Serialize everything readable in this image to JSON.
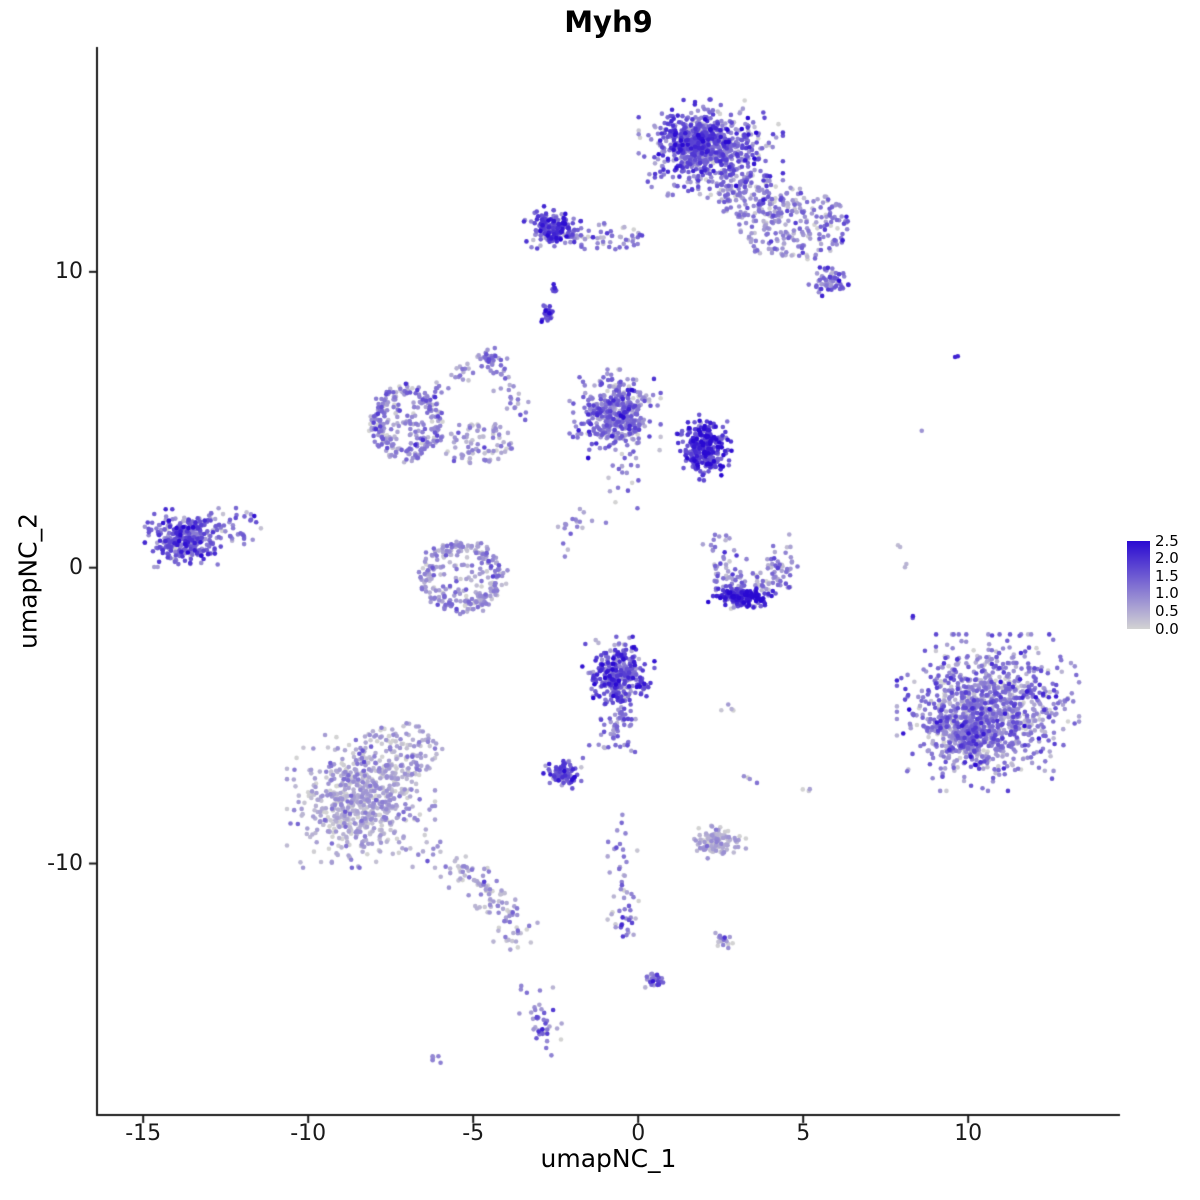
{
  "chart_data": {
    "type": "scatter",
    "title": "Myh9",
    "xlabel": "umapNC_1",
    "ylabel": "umapNC_2",
    "xlim": [
      -16.4,
      14.6
    ],
    "ylim": [
      -18.5,
      17.6
    ],
    "xticks": [
      -15,
      -10,
      -5,
      0,
      5,
      10
    ],
    "yticks": [
      -10,
      0,
      10
    ],
    "grid": false,
    "legend_position": "right",
    "point_color_low": "#d3d3d3",
    "point_color_high": "#2a0ad2",
    "colorbar": {
      "ticks": [
        "2.5",
        "2.0",
        "1.5",
        "1.0",
        "0.5",
        "0.0"
      ],
      "min": 0,
      "max": 2.5
    },
    "clusters": [
      {
        "name": "top-main",
        "shape": "blob",
        "cx": 2.2,
        "cy": 14.1,
        "rx": 1.9,
        "ry": 1.5,
        "n": 620,
        "expr_mean": 1.15,
        "expr_sd": 0.6
      },
      {
        "name": "top-main-core",
        "shape": "blob",
        "cx": 1.7,
        "cy": 14.5,
        "rx": 0.95,
        "ry": 0.85,
        "n": 220,
        "expr_mean": 1.6,
        "expr_sd": 0.5
      },
      {
        "name": "top-right-arm",
        "shape": "spread",
        "cx": 4.7,
        "cy": 11.6,
        "rx": 1.7,
        "ry": 1.25,
        "n": 230,
        "expr_mean": 0.85,
        "expr_sd": 0.5
      },
      {
        "name": "top-right-tip",
        "shape": "blob",
        "cx": 5.8,
        "cy": 9.7,
        "rx": 0.55,
        "ry": 0.45,
        "n": 60,
        "expr_mean": 1.25,
        "expr_sd": 0.5
      },
      {
        "name": "top-bridge",
        "shape": "spread",
        "cx": 3.4,
        "cy": 12.5,
        "rx": 1.0,
        "ry": 0.8,
        "n": 90,
        "expr_mean": 0.9,
        "expr_sd": 0.5
      },
      {
        "name": "upper-left-blob",
        "shape": "blob",
        "cx": -2.6,
        "cy": 11.5,
        "rx": 0.75,
        "ry": 0.62,
        "n": 180,
        "expr_mean": 1.55,
        "expr_sd": 0.55
      },
      {
        "name": "upper-left-scatter",
        "shape": "spread",
        "cx": -1.0,
        "cy": 11.15,
        "rx": 1.15,
        "ry": 0.5,
        "n": 60,
        "expr_mean": 0.85,
        "expr_sd": 0.5
      },
      {
        "name": "stub-upper",
        "shape": "blob",
        "cx": -2.55,
        "cy": 9.4,
        "rx": 0.12,
        "ry": 0.2,
        "n": 8,
        "expr_mean": 1.5,
        "expr_sd": 0.4
      },
      {
        "name": "stub",
        "shape": "blob",
        "cx": -2.75,
        "cy": 8.6,
        "rx": 0.18,
        "ry": 0.34,
        "n": 24,
        "expr_mean": 1.7,
        "expr_sd": 0.45
      },
      {
        "name": "arc-blob",
        "shape": "blob",
        "cx": -4.5,
        "cy": 7.1,
        "rx": 0.3,
        "ry": 0.28,
        "n": 30,
        "expr_mean": 1.0,
        "expr_sd": 0.5
      },
      {
        "name": "arc-trail",
        "shape": "trail",
        "path": [
          [
            -6.4,
            5.9
          ],
          [
            -5.3,
            6.5
          ],
          [
            -4.4,
            6.9
          ],
          [
            -3.8,
            6.0
          ],
          [
            -3.6,
            5.0
          ]
        ],
        "jitter": 0.22,
        "n": 60,
        "expr_mean": 0.8,
        "expr_sd": 0.45
      },
      {
        "name": "left-ring",
        "shape": "ring",
        "cx": -7.0,
        "cy": 4.9,
        "rx": 1.05,
        "ry": 1.25,
        "n": 270,
        "expr_mean": 0.8,
        "expr_sd": 0.5
      },
      {
        "name": "ring-bridge",
        "shape": "spread",
        "cx": -4.9,
        "cy": 4.2,
        "rx": 1.15,
        "ry": 0.75,
        "n": 85,
        "expr_mean": 0.7,
        "expr_sd": 0.45
      },
      {
        "name": "center-cluster",
        "shape": "blob",
        "cx": -0.7,
        "cy": 5.2,
        "rx": 1.2,
        "ry": 1.3,
        "n": 430,
        "expr_mean": 1.0,
        "expr_sd": 0.55
      },
      {
        "name": "center-dark",
        "shape": "blob",
        "cx": 2.0,
        "cy": 4.1,
        "rx": 0.72,
        "ry": 1.0,
        "n": 270,
        "expr_mean": 1.8,
        "expr_sd": 0.5
      },
      {
        "name": "center-drip",
        "shape": "trail",
        "path": [
          [
            -0.2,
            3.4
          ],
          [
            -1.2,
            1.8
          ],
          [
            -2.6,
            0.9
          ]
        ],
        "jitter": 0.3,
        "n": 35,
        "expr_mean": 0.8,
        "expr_sd": 0.5
      },
      {
        "name": "left-crescent",
        "shape": "ring",
        "cx": -5.3,
        "cy": -0.3,
        "rx": 1.25,
        "ry": 1.15,
        "n": 285,
        "expr_mean": 0.7,
        "expr_sd": 0.45
      },
      {
        "name": "far-left",
        "shape": "blob",
        "cx": -13.8,
        "cy": 1.0,
        "rx": 1.0,
        "ry": 0.85,
        "n": 330,
        "expr_mean": 1.3,
        "expr_sd": 0.6
      },
      {
        "name": "far-left-tail",
        "shape": "spread",
        "cx": -12.3,
        "cy": 1.4,
        "rx": 0.9,
        "ry": 0.8,
        "n": 40,
        "expr_mean": 1.0,
        "expr_sd": 0.5
      },
      {
        "name": "right-crescent",
        "shape": "trail",
        "path": [
          [
            2.4,
            0.9
          ],
          [
            2.55,
            -0.2
          ],
          [
            3.3,
            -1.0
          ],
          [
            4.2,
            -0.5
          ],
          [
            4.45,
            0.6
          ]
        ],
        "jitter": 0.28,
        "n": 160,
        "expr_mean": 0.9,
        "expr_sd": 0.5
      },
      {
        "name": "right-crescent-dark",
        "shape": "blob",
        "cx": 3.1,
        "cy": -1.0,
        "rx": 0.85,
        "ry": 0.35,
        "n": 130,
        "expr_mean": 2.1,
        "expr_sd": 0.35
      },
      {
        "name": "bottom-center",
        "shape": "blob",
        "cx": -0.6,
        "cy": -3.6,
        "rx": 0.95,
        "ry": 1.1,
        "n": 310,
        "expr_mean": 1.45,
        "expr_sd": 0.6
      },
      {
        "name": "bottom-center-trail",
        "shape": "trail",
        "path": [
          [
            -0.5,
            -4.8
          ],
          [
            -0.8,
            -6.3
          ]
        ],
        "jitter": 0.3,
        "n": 55,
        "expr_mean": 1.1,
        "expr_sd": 0.5
      },
      {
        "name": "small-dark",
        "shape": "blob",
        "cx": -2.3,
        "cy": -7.0,
        "rx": 0.5,
        "ry": 0.4,
        "n": 95,
        "expr_mean": 1.5,
        "expr_sd": 0.55
      },
      {
        "name": "bottom-left-main",
        "shape": "blob",
        "cx": -8.4,
        "cy": -7.9,
        "rx": 1.95,
        "ry": 1.95,
        "n": 640,
        "expr_mean": 0.45,
        "expr_sd": 0.38
      },
      {
        "name": "bottom-left-upper",
        "shape": "spread",
        "cx": -7.2,
        "cy": -6.2,
        "rx": 1.3,
        "ry": 0.95,
        "n": 120,
        "expr_mean": 0.5,
        "expr_sd": 0.38
      },
      {
        "name": "bottom-left-tail",
        "shape": "trail",
        "path": [
          [
            -6.4,
            -9.2
          ],
          [
            -5.2,
            -10.3
          ],
          [
            -4.4,
            -10.9
          ],
          [
            -4.0,
            -11.7
          ],
          [
            -3.8,
            -12.9
          ]
        ],
        "jitter": 0.3,
        "n": 115,
        "expr_mean": 0.5,
        "expr_sd": 0.4
      },
      {
        "name": "small-lavender",
        "shape": "blob",
        "cx": 2.4,
        "cy": -9.3,
        "rx": 0.75,
        "ry": 0.5,
        "n": 115,
        "expr_mean": 0.45,
        "expr_sd": 0.35
      },
      {
        "name": "right-main",
        "shape": "blob",
        "cx": 10.6,
        "cy": -4.9,
        "rx": 2.4,
        "ry": 2.3,
        "n": 1050,
        "expr_mean": 0.9,
        "expr_sd": 0.55
      },
      {
        "name": "right-main-core",
        "shape": "blob",
        "cx": 10.0,
        "cy": -5.6,
        "rx": 1.2,
        "ry": 1.1,
        "n": 260,
        "expr_mean": 1.05,
        "expr_sd": 0.5
      },
      {
        "name": "center-vtrail",
        "shape": "trail",
        "path": [
          [
            -0.6,
            -8.9
          ],
          [
            -0.5,
            -10.3
          ],
          [
            -0.4,
            -11.6
          ],
          [
            -0.5,
            -12.4
          ]
        ],
        "jitter": 0.2,
        "n": 55,
        "expr_mean": 0.9,
        "expr_sd": 0.5
      },
      {
        "name": "bottom-blob-a",
        "shape": "blob",
        "cx": 0.5,
        "cy": -13.9,
        "rx": 0.3,
        "ry": 0.25,
        "n": 24,
        "expr_mean": 1.2,
        "expr_sd": 0.5
      },
      {
        "name": "bottom-blob-b",
        "shape": "blob",
        "cx": 2.6,
        "cy": -12.6,
        "rx": 0.3,
        "ry": 0.3,
        "n": 18,
        "expr_mean": 0.8,
        "expr_sd": 0.5
      },
      {
        "name": "bottom-trail",
        "shape": "trail",
        "path": [
          [
            -3.4,
            -14.3
          ],
          [
            -2.9,
            -15.3
          ],
          [
            -2.5,
            -16.2
          ]
        ],
        "jitter": 0.25,
        "n": 42,
        "expr_mean": 0.8,
        "expr_sd": 0.5
      },
      {
        "name": "bottom-dots",
        "shape": "blob",
        "cx": -6.2,
        "cy": -16.6,
        "rx": 0.28,
        "ry": 0.15,
        "n": 6,
        "expr_mean": 0.6,
        "expr_sd": 0.4
      },
      {
        "name": "dot-ne",
        "shape": "blob",
        "cx": 9.6,
        "cy": 7.1,
        "rx": 0.12,
        "ry": 0.1,
        "n": 2,
        "expr_mean": 1.9,
        "expr_sd": 0.3
      },
      {
        "name": "dot-e1",
        "shape": "blob",
        "cx": 8.5,
        "cy": 4.6,
        "rx": 0.1,
        "ry": 0.1,
        "n": 1,
        "expr_mean": 0.9,
        "expr_sd": 0.2
      },
      {
        "name": "dot-e2",
        "shape": "blob",
        "cx": 7.9,
        "cy": 0.8,
        "rx": 0.12,
        "ry": 0.12,
        "n": 2,
        "expr_mean": 0.3,
        "expr_sd": 0.2
      },
      {
        "name": "dot-e3",
        "shape": "blob",
        "cx": 8.1,
        "cy": 0.1,
        "rx": 0.12,
        "ry": 0.12,
        "n": 2,
        "expr_mean": 0.3,
        "expr_sd": 0.2
      },
      {
        "name": "dot-e4",
        "shape": "blob",
        "cx": 8.3,
        "cy": -1.6,
        "rx": 0.12,
        "ry": 0.12,
        "n": 2,
        "expr_mean": 1.2,
        "expr_sd": 0.4
      },
      {
        "name": "dot-s1",
        "shape": "blob",
        "cx": 5.1,
        "cy": -7.5,
        "rx": 0.18,
        "ry": 0.12,
        "n": 3,
        "expr_mean": 0.3,
        "expr_sd": 0.2
      },
      {
        "name": "dot-s2",
        "shape": "blob",
        "cx": 3.4,
        "cy": -7.1,
        "rx": 0.2,
        "ry": 0.25,
        "n": 4,
        "expr_mean": 0.4,
        "expr_sd": 0.3
      },
      {
        "name": "dot-s3",
        "shape": "blob",
        "cx": 2.7,
        "cy": -4.8,
        "rx": 0.35,
        "ry": 0.2,
        "n": 4,
        "expr_mean": 0.4,
        "expr_sd": 0.3
      }
    ]
  }
}
